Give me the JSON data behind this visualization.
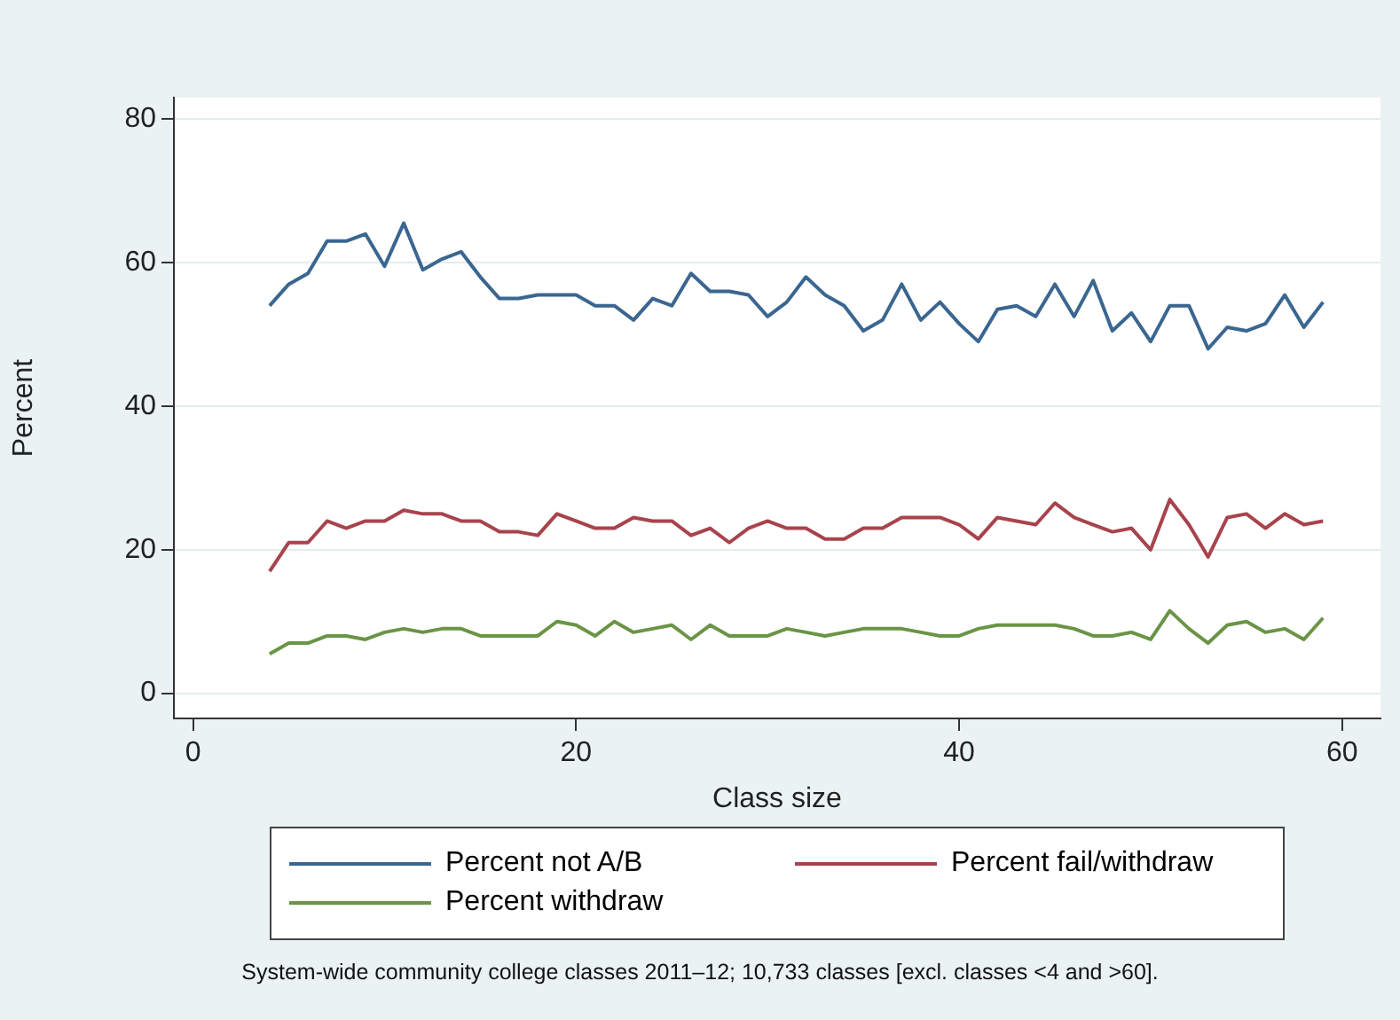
{
  "chart_data": {
    "type": "line",
    "xlabel": "Class size",
    "ylabel": "Percent",
    "x": [
      4,
      5,
      6,
      7,
      8,
      9,
      10,
      11,
      12,
      13,
      14,
      15,
      16,
      17,
      18,
      19,
      20,
      21,
      22,
      23,
      24,
      25,
      26,
      27,
      28,
      29,
      30,
      31,
      32,
      33,
      34,
      35,
      36,
      37,
      38,
      39,
      40,
      41,
      42,
      43,
      44,
      45,
      46,
      47,
      48,
      49,
      50,
      51,
      52,
      53,
      54,
      55,
      56,
      57,
      58,
      59
    ],
    "xlim": [
      -1,
      62
    ],
    "xticks": [
      0,
      20,
      40,
      60
    ],
    "ylim": [
      -3.5,
      83
    ],
    "yticks": [
      0,
      20,
      40,
      60,
      80
    ],
    "grid": "y",
    "legend": "bottom",
    "marker": "none",
    "line_style": "solid",
    "series": [
      {
        "name": "Percent not A/B",
        "color": "#3a6690",
        "values": [
          54,
          57,
          58.5,
          63,
          63,
          64,
          59.5,
          65.5,
          59,
          60.5,
          61.5,
          58,
          55,
          55,
          55.5,
          55.5,
          55.5,
          54,
          54,
          52,
          55,
          54,
          58.5,
          56,
          56,
          55.5,
          52.5,
          54.5,
          58,
          55.5,
          54,
          50.5,
          52,
          57,
          52,
          54.5,
          51.5,
          49,
          53.5,
          54,
          52.5,
          57,
          52.5,
          57.5,
          50.5,
          53,
          49,
          54,
          54,
          48,
          51,
          50.5,
          51.5,
          55.5,
          51,
          54.5
        ]
      },
      {
        "name": "Percent fail/withdraw",
        "color": "#a8434c",
        "values": [
          17,
          21,
          21,
          24,
          23,
          24,
          24,
          25.5,
          25,
          25,
          24,
          24,
          22.5,
          22.5,
          22,
          25,
          24,
          23,
          23,
          24.5,
          24,
          24,
          22,
          23,
          21,
          23,
          24,
          23,
          23,
          21.5,
          21.5,
          23,
          23,
          24.5,
          24.5,
          24.5,
          23.5,
          21.5,
          24.5,
          24,
          23.5,
          26.5,
          24.5,
          23.5,
          22.5,
          23,
          20,
          27,
          23.5,
          19,
          24.5,
          25,
          23,
          25,
          23.5,
          24
        ]
      },
      {
        "name": "Percent withdraw",
        "color": "#6a9446",
        "values": [
          5.5,
          7,
          7,
          8,
          8,
          7.5,
          8.5,
          9,
          8.5,
          9,
          9,
          8,
          8,
          8,
          8,
          10,
          9.5,
          8,
          10,
          8.5,
          9,
          9.5,
          7.5,
          9.5,
          8,
          8,
          8,
          9,
          8.5,
          8,
          8.5,
          9,
          9,
          9,
          8.5,
          8,
          8,
          9,
          9.5,
          9.5,
          9.5,
          9.5,
          9,
          8,
          8,
          8.5,
          7.5,
          11.5,
          9,
          7,
          9.5,
          10,
          8.5,
          9,
          7.5,
          10.5
        ]
      }
    ],
    "annotations": [
      "System-wide community college classes 2011–12; 10,733 classes [excl. classes <4 and >60]."
    ]
  }
}
